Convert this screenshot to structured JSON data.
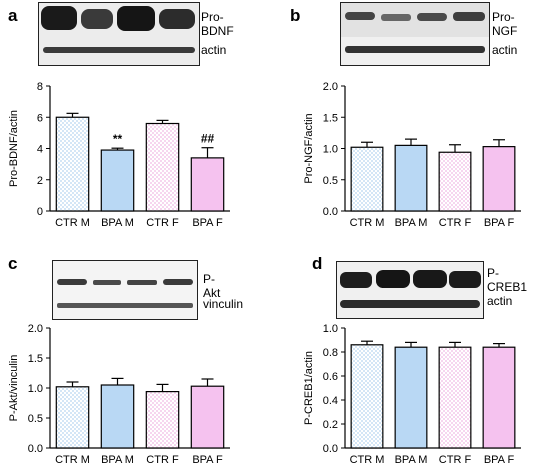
{
  "panels": [
    {
      "letter": "a",
      "blot_labels": [
        "Pro-BDNF",
        "actin"
      ],
      "chart_data": {
        "type": "bar",
        "categories": [
          "CTR M",
          "BPA M",
          "CTR F",
          "BPA F"
        ],
        "values": [
          6.0,
          3.9,
          5.6,
          3.4
        ],
        "errors": [
          0.25,
          0.12,
          0.2,
          0.65
        ],
        "annotations": [
          "",
          "**",
          "",
          "##"
        ],
        "ylabel": "Pro-BDNF/actin",
        "ylim": [
          0,
          8
        ],
        "yticks": [
          "0",
          "2",
          "4",
          "6",
          "8"
        ],
        "grid": false
      }
    },
    {
      "letter": "b",
      "blot_labels": [
        "Pro-NGF",
        "actin"
      ],
      "chart_data": {
        "type": "bar",
        "categories": [
          "CTR M",
          "BPA M",
          "CTR F",
          "BPA F"
        ],
        "values": [
          1.02,
          1.05,
          0.94,
          1.03
        ],
        "errors": [
          0.08,
          0.1,
          0.12,
          0.11
        ],
        "annotations": [
          "",
          "",
          "",
          ""
        ],
        "ylabel": "Pro-NGF/actin",
        "ylim": [
          0,
          2.0
        ],
        "yticks": [
          "0.0",
          "0.5",
          "1.0",
          "1.5",
          "2.0"
        ],
        "grid": false
      }
    },
    {
      "letter": "c",
      "blot_labels": [
        "P-Akt",
        "vinculin"
      ],
      "chart_data": {
        "type": "bar",
        "categories": [
          "CTR M",
          "BPA M",
          "CTR F",
          "BPA F"
        ],
        "values": [
          1.02,
          1.05,
          0.94,
          1.03
        ],
        "errors": [
          0.08,
          0.11,
          0.12,
          0.12
        ],
        "annotations": [
          "",
          "",
          "",
          ""
        ],
        "ylabel": "P-Akt/vinculin",
        "ylim": [
          0,
          2.0
        ],
        "yticks": [
          "0.0",
          "0.5",
          "1.0",
          "1.5",
          "2.0"
        ],
        "grid": false
      }
    },
    {
      "letter": "d",
      "blot_labels": [
        "P-CREB1",
        "actin"
      ],
      "chart_data": {
        "type": "bar",
        "categories": [
          "CTR M",
          "BPA M",
          "CTR F",
          "BPA F"
        ],
        "values": [
          0.86,
          0.84,
          0.84,
          0.84
        ],
        "errors": [
          0.03,
          0.04,
          0.04,
          0.03
        ],
        "annotations": [
          "",
          "",
          "",
          ""
        ],
        "ylabel": "P-CREB1/actin",
        "ylim": [
          0,
          1.0
        ],
        "yticks": [
          "0.0",
          "0.2",
          "0.4",
          "0.6",
          "0.8",
          "1.0"
        ],
        "grid": false
      }
    }
  ],
  "series_colors": {
    "CTR M": "#d4e6f6",
    "BPA M": "#b9d8f4",
    "CTR F": "#f6d6ef",
    "BPA F": "#f5c2ef"
  }
}
